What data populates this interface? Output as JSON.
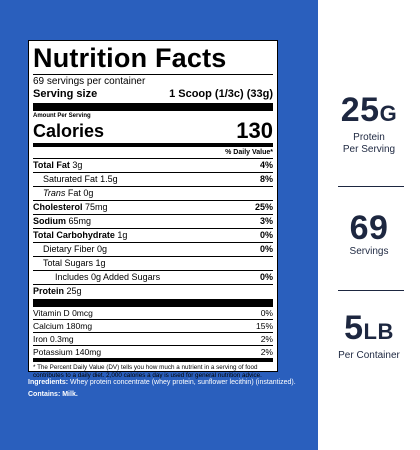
{
  "nutrition": {
    "title": "Nutrition Facts",
    "servings_per_container": "69 servings per container",
    "serving_size_label": "Serving size",
    "serving_size_value": "1 Scoop (1/3c) (33g)",
    "amount_per_serving": "Amount Per Serving",
    "calories_label": "Calories",
    "calories_value": "130",
    "daily_value_header": "% Daily Value*",
    "rows": {
      "total_fat": {
        "label": "Total Fat",
        "amount": "3g",
        "dv": "4%"
      },
      "saturated_fat": {
        "label": "Saturated Fat",
        "amount": "1.5g",
        "dv": "8%"
      },
      "trans_fat": {
        "label": "Trans",
        "label2": "Fat",
        "amount": "0g"
      },
      "cholesterol": {
        "label": "Cholesterol",
        "amount": "75mg",
        "dv": "25%"
      },
      "sodium": {
        "label": "Sodium",
        "amount": "65mg",
        "dv": "3%"
      },
      "total_carb": {
        "label": "Total Carbohydrate",
        "amount": "1g",
        "dv": "0%"
      },
      "dietary_fiber": {
        "label": "Dietary Fiber",
        "amount": "0g",
        "dv": "0%"
      },
      "total_sugars": {
        "label": "Total Sugars",
        "amount": "1g"
      },
      "added_sugars": {
        "label": "Includes 0g Added Sugars",
        "dv": "0%"
      },
      "protein": {
        "label": "Protein",
        "amount": "25g"
      }
    },
    "vitamins": [
      {
        "label": "Vitamin D",
        "amount": "0mcg",
        "dv": "0%"
      },
      {
        "label": "Calcium",
        "amount": "180mg",
        "dv": "15%"
      },
      {
        "label": "Iron",
        "amount": "0.3mg",
        "dv": "2%"
      },
      {
        "label": "Potassium",
        "amount": "140mg",
        "dv": "2%"
      }
    ],
    "footnote": "* The Percent Daily Value (DV) tells you how much a nutrient in a serving of food contributes to a daily diet. 2,000 calories a day is used for general nutrition advice."
  },
  "ingredients": {
    "label": "Ingredients:",
    "text": "Whey protein concentrate (whey protein, sunflower lecithin) (instantized).",
    "contains": "Contains: Milk."
  },
  "stats": {
    "protein": {
      "number": "25",
      "unit": "G",
      "caption1": "Protein",
      "caption2": "Per Serving"
    },
    "servings": {
      "number": "69",
      "caption1": "Servings"
    },
    "weight": {
      "number": "5",
      "unit": "LB",
      "caption1": "Per Container"
    }
  },
  "colors": {
    "brand_blue": "#2a5fbd",
    "stat_text": "#1d2740"
  }
}
